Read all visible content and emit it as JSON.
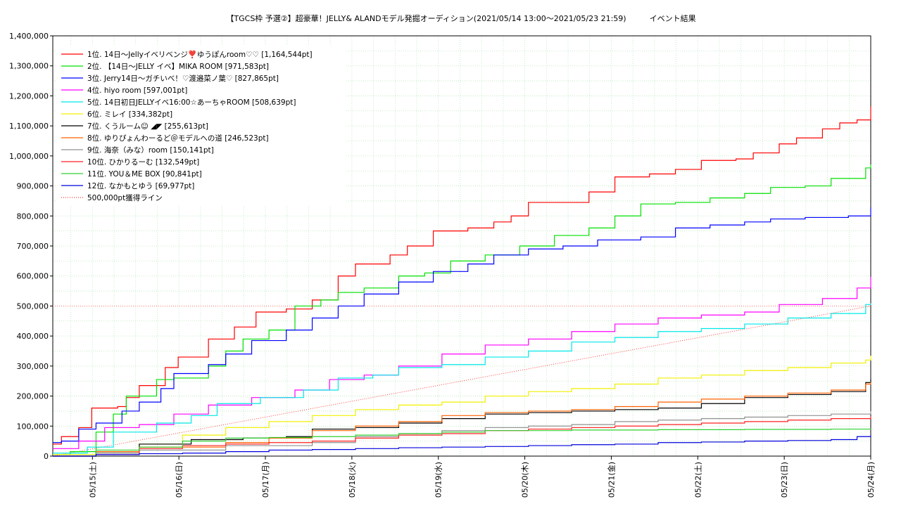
{
  "chart_data": {
    "type": "line",
    "title": "【TGCS枠 予選②】超豪華！JELLY& ALANDモデル発掘オーディション(2021/05/14 13:00〜2021/05/23 21:59)　　　イベント結果",
    "xlabel": "",
    "ylabel": "",
    "ylim": [
      0,
      1400000
    ],
    "xlim_days": [
      "05/14 13:00",
      "05/24 00:00"
    ],
    "grid": true,
    "legend_position": "top-left",
    "y_ticks": [
      "0",
      "100,000",
      "200,000",
      "300,000",
      "400,000",
      "500,000",
      "600,000",
      "700,000",
      "800,000",
      "900,000",
      "1,000,000",
      "1,100,000",
      "1,200,000",
      "1,300,000",
      "1,400,000"
    ],
    "x_ticks": [
      "05/15(土)",
      "05/16(日)",
      "05/17(月)",
      "05/18(火)",
      "05/19(水)",
      "05/20(木)",
      "05/21(金)",
      "05/22(土)",
      "05/23(日)",
      "05/24(月)"
    ],
    "series": [
      {
        "name": "1位. 14日〜Jellyイベリベンジ❣️ゆうぽんroom♡♡ [1,164,544pt]",
        "color": "#ff0000",
        "final": 1164544,
        "points": [
          [
            0,
            40000
          ],
          [
            0.1,
            65000
          ],
          [
            0.3,
            95000
          ],
          [
            0.45,
            160000
          ],
          [
            0.75,
            165000
          ],
          [
            0.85,
            195000
          ],
          [
            1.0,
            235000
          ],
          [
            1.3,
            295000
          ],
          [
            1.45,
            330000
          ],
          [
            1.8,
            390000
          ],
          [
            2.1,
            430000
          ],
          [
            2.35,
            480000
          ],
          [
            2.7,
            490000
          ],
          [
            3.0,
            520000
          ],
          [
            3.3,
            600000
          ],
          [
            3.5,
            640000
          ],
          [
            3.9,
            670000
          ],
          [
            4.1,
            700000
          ],
          [
            4.4,
            750000
          ],
          [
            4.8,
            760000
          ],
          [
            5.1,
            780000
          ],
          [
            5.3,
            800000
          ],
          [
            5.5,
            845000
          ],
          [
            6.2,
            880000
          ],
          [
            6.5,
            930000
          ],
          [
            6.9,
            940000
          ],
          [
            7.2,
            955000
          ],
          [
            7.5,
            985000
          ],
          [
            7.9,
            990000
          ],
          [
            8.1,
            1010000
          ],
          [
            8.4,
            1040000
          ],
          [
            8.6,
            1060000
          ],
          [
            8.9,
            1090000
          ],
          [
            9.1,
            1110000
          ],
          [
            9.3,
            1120000
          ],
          [
            9.5,
            1150000
          ],
          [
            9.6,
            1164544
          ]
        ]
      },
      {
        "name": "2位. 【14日〜JELLY イベ】MIKA ROOM [971,583pt]",
        "color": "#00e000",
        "final": 971583,
        "points": [
          [
            0,
            5000
          ],
          [
            0.2,
            15000
          ],
          [
            0.5,
            80000
          ],
          [
            0.7,
            140000
          ],
          [
            0.85,
            200000
          ],
          [
            1.2,
            255000
          ],
          [
            1.4,
            260000
          ],
          [
            1.8,
            300000
          ],
          [
            2.0,
            350000
          ],
          [
            2.2,
            390000
          ],
          [
            2.5,
            420000
          ],
          [
            2.8,
            500000
          ],
          [
            3.1,
            520000
          ],
          [
            3.3,
            545000
          ],
          [
            3.6,
            560000
          ],
          [
            4.0,
            600000
          ],
          [
            4.3,
            610000
          ],
          [
            4.6,
            650000
          ],
          [
            5.0,
            670000
          ],
          [
            5.4,
            700000
          ],
          [
            5.8,
            735000
          ],
          [
            6.2,
            760000
          ],
          [
            6.5,
            800000
          ],
          [
            6.8,
            840000
          ],
          [
            7.2,
            845000
          ],
          [
            7.6,
            860000
          ],
          [
            8.0,
            875000
          ],
          [
            8.3,
            895000
          ],
          [
            8.7,
            900000
          ],
          [
            9.0,
            925000
          ],
          [
            9.4,
            960000
          ],
          [
            9.6,
            971583
          ]
        ]
      },
      {
        "name": "3位. Jerry14日〜ガチいべ！♡渡邉菜ノ葉♡ [827,865pt]",
        "color": "#0000ff",
        "final": 827865,
        "points": [
          [
            0,
            45000
          ],
          [
            0.1,
            50000
          ],
          [
            0.3,
            90000
          ],
          [
            0.5,
            110000
          ],
          [
            0.8,
            150000
          ],
          [
            1.0,
            180000
          ],
          [
            1.25,
            225000
          ],
          [
            1.4,
            275000
          ],
          [
            1.8,
            305000
          ],
          [
            2.0,
            340000
          ],
          [
            2.3,
            385000
          ],
          [
            2.7,
            420000
          ],
          [
            3.0,
            460000
          ],
          [
            3.3,
            500000
          ],
          [
            3.6,
            540000
          ],
          [
            4.0,
            580000
          ],
          [
            4.4,
            615000
          ],
          [
            4.8,
            640000
          ],
          [
            5.1,
            670000
          ],
          [
            5.5,
            690000
          ],
          [
            5.9,
            700000
          ],
          [
            6.3,
            720000
          ],
          [
            6.8,
            730000
          ],
          [
            7.2,
            760000
          ],
          [
            7.6,
            770000
          ],
          [
            8.0,
            780000
          ],
          [
            8.3,
            790000
          ],
          [
            8.7,
            795000
          ],
          [
            9.2,
            800000
          ],
          [
            9.5,
            827865
          ],
          [
            9.6,
            827865
          ]
        ]
      },
      {
        "name": "4位. hiyo room [597,001pt]",
        "color": "#ff00ff",
        "final": 597001,
        "points": [
          [
            0,
            25000
          ],
          [
            0.3,
            50000
          ],
          [
            0.6,
            95000
          ],
          [
            1.0,
            105000
          ],
          [
            1.4,
            140000
          ],
          [
            1.8,
            170000
          ],
          [
            2.3,
            195000
          ],
          [
            2.8,
            220000
          ],
          [
            3.2,
            255000
          ],
          [
            3.6,
            270000
          ],
          [
            4.0,
            300000
          ],
          [
            4.5,
            340000
          ],
          [
            5.0,
            370000
          ],
          [
            5.5,
            390000
          ],
          [
            6.0,
            415000
          ],
          [
            6.5,
            440000
          ],
          [
            7.0,
            460000
          ],
          [
            7.5,
            470000
          ],
          [
            8.0,
            480000
          ],
          [
            8.4,
            505000
          ],
          [
            8.9,
            525000
          ],
          [
            9.3,
            560000
          ],
          [
            9.6,
            597001
          ]
        ]
      },
      {
        "name": "5位. 14日初日JELLYイベ16:00☆あーちゃROOM [508,639pt]",
        "color": "#00e8e8",
        "final": 508639,
        "points": [
          [
            0,
            10000
          ],
          [
            0.4,
            30000
          ],
          [
            0.7,
            80000
          ],
          [
            1.2,
            110000
          ],
          [
            1.6,
            135000
          ],
          [
            1.9,
            175000
          ],
          [
            2.4,
            195000
          ],
          [
            2.9,
            220000
          ],
          [
            3.3,
            260000
          ],
          [
            3.7,
            270000
          ],
          [
            4.0,
            295000
          ],
          [
            4.5,
            305000
          ],
          [
            5.0,
            330000
          ],
          [
            5.5,
            350000
          ],
          [
            6.0,
            380000
          ],
          [
            6.5,
            395000
          ],
          [
            7.0,
            415000
          ],
          [
            7.5,
            425000
          ],
          [
            8.0,
            440000
          ],
          [
            8.5,
            460000
          ],
          [
            9.0,
            475000
          ],
          [
            9.4,
            505000
          ],
          [
            9.6,
            508639
          ]
        ]
      },
      {
        "name": "6位. ミレイ [334,382pt]",
        "color": "#f0f000",
        "final": 334382,
        "points": [
          [
            0,
            5000
          ],
          [
            0.5,
            15000
          ],
          [
            1.0,
            40000
          ],
          [
            1.5,
            70000
          ],
          [
            2.0,
            95000
          ],
          [
            2.5,
            115000
          ],
          [
            3.0,
            135000
          ],
          [
            3.5,
            155000
          ],
          [
            4.0,
            170000
          ],
          [
            4.5,
            180000
          ],
          [
            5.0,
            200000
          ],
          [
            5.5,
            215000
          ],
          [
            6.0,
            225000
          ],
          [
            6.5,
            240000
          ],
          [
            7.0,
            260000
          ],
          [
            7.5,
            270000
          ],
          [
            8.0,
            285000
          ],
          [
            8.5,
            295000
          ],
          [
            9.0,
            310000
          ],
          [
            9.4,
            320000
          ],
          [
            9.6,
            334382
          ]
        ]
      },
      {
        "name": "7位. くうルーム☺︎ ◢◤ [255,613pt]",
        "color": "#000000",
        "final": 255613,
        "points": [
          [
            0,
            0
          ],
          [
            0.5,
            15000
          ],
          [
            1.0,
            40000
          ],
          [
            1.6,
            55000
          ],
          [
            2.2,
            60000
          ],
          [
            2.7,
            65000
          ],
          [
            3.0,
            90000
          ],
          [
            3.5,
            95000
          ],
          [
            4.0,
            110000
          ],
          [
            4.5,
            125000
          ],
          [
            5.0,
            140000
          ],
          [
            5.5,
            145000
          ],
          [
            6.0,
            150000
          ],
          [
            6.5,
            155000
          ],
          [
            7.0,
            160000
          ],
          [
            7.5,
            175000
          ],
          [
            8.0,
            195000
          ],
          [
            8.5,
            205000
          ],
          [
            9.0,
            215000
          ],
          [
            9.4,
            245000
          ],
          [
            9.6,
            255613
          ]
        ]
      },
      {
        "name": "8位. ゆりぴょんわーるど＠モデルへの道 [246,523pt]",
        "color": "#ff6000",
        "final": 246523,
        "points": [
          [
            0,
            0
          ],
          [
            0.5,
            15000
          ],
          [
            1.0,
            30000
          ],
          [
            2.0,
            45000
          ],
          [
            2.5,
            60000
          ],
          [
            3.0,
            85000
          ],
          [
            3.5,
            100000
          ],
          [
            4.0,
            115000
          ],
          [
            4.5,
            135000
          ],
          [
            5.0,
            145000
          ],
          [
            5.5,
            150000
          ],
          [
            6.0,
            155000
          ],
          [
            6.5,
            165000
          ],
          [
            7.0,
            180000
          ],
          [
            7.5,
            190000
          ],
          [
            8.0,
            200000
          ],
          [
            8.5,
            210000
          ],
          [
            9.0,
            220000
          ],
          [
            9.4,
            240000
          ],
          [
            9.6,
            246523
          ]
        ]
      },
      {
        "name": "9位. 海奈（みな）room [150,141pt]",
        "color": "#909090",
        "final": 150141,
        "points": [
          [
            0,
            0
          ],
          [
            0.5,
            10000
          ],
          [
            1.0,
            20000
          ],
          [
            2.0,
            35000
          ],
          [
            3.0,
            45000
          ],
          [
            3.5,
            65000
          ],
          [
            4.0,
            75000
          ],
          [
            4.5,
            85000
          ],
          [
            5.0,
            95000
          ],
          [
            5.5,
            100000
          ],
          [
            6.0,
            105000
          ],
          [
            6.5,
            115000
          ],
          [
            7.0,
            120000
          ],
          [
            7.5,
            125000
          ],
          [
            8.0,
            130000
          ],
          [
            8.5,
            135000
          ],
          [
            9.0,
            140000
          ],
          [
            9.5,
            145000
          ],
          [
            9.6,
            150141
          ]
        ]
      },
      {
        "name": "10位. ひかりるーむ [132,549pt]",
        "color": "#ff2020",
        "final": 132549,
        "points": [
          [
            0,
            0
          ],
          [
            0.5,
            5000
          ],
          [
            1.0,
            25000
          ],
          [
            1.5,
            35000
          ],
          [
            2.0,
            40000
          ],
          [
            2.5,
            45000
          ],
          [
            3.0,
            50000
          ],
          [
            3.5,
            60000
          ],
          [
            4.0,
            70000
          ],
          [
            4.5,
            75000
          ],
          [
            5.0,
            85000
          ],
          [
            5.5,
            90000
          ],
          [
            6.0,
            95000
          ],
          [
            6.5,
            100000
          ],
          [
            7.0,
            105000
          ],
          [
            7.5,
            110000
          ],
          [
            8.0,
            115000
          ],
          [
            8.5,
            120000
          ],
          [
            9.0,
            125000
          ],
          [
            9.6,
            132549
          ]
        ]
      },
      {
        "name": "11位. YOU＆ME BOX [90,841pt]",
        "color": "#30d030",
        "final": 90841,
        "points": [
          [
            0,
            0
          ],
          [
            0.5,
            20000
          ],
          [
            1.0,
            30000
          ],
          [
            1.5,
            50000
          ],
          [
            2.0,
            60000
          ],
          [
            2.5,
            62000
          ],
          [
            3.0,
            65000
          ],
          [
            3.5,
            70000
          ],
          [
            4.0,
            75000
          ],
          [
            4.5,
            80000
          ],
          [
            5.0,
            85000
          ],
          [
            6.0,
            87000
          ],
          [
            7.0,
            88000
          ],
          [
            8.0,
            89000
          ],
          [
            9.0,
            90000
          ],
          [
            9.6,
            90841
          ]
        ]
      },
      {
        "name": "12位. なかもとゆう [69,977pt]",
        "color": "#0000dd",
        "final": 69977,
        "points": [
          [
            0,
            0
          ],
          [
            0.5,
            5000
          ],
          [
            1.0,
            8000
          ],
          [
            1.5,
            10000
          ],
          [
            2.0,
            15000
          ],
          [
            2.5,
            20000
          ],
          [
            3.0,
            22000
          ],
          [
            3.5,
            25000
          ],
          [
            4.0,
            28000
          ],
          [
            4.5,
            30000
          ],
          [
            5.0,
            32000
          ],
          [
            5.5,
            35000
          ],
          [
            6.0,
            38000
          ],
          [
            6.5,
            40000
          ],
          [
            7.0,
            45000
          ],
          [
            7.5,
            47000
          ],
          [
            8.0,
            50000
          ],
          [
            8.5,
            52000
          ],
          [
            9.0,
            55000
          ],
          [
            9.3,
            65000
          ],
          [
            9.6,
            69977
          ]
        ]
      }
    ],
    "reference_line": {
      "name": "500,000pt獲得ライン",
      "color": "#ff0000",
      "value": 500000
    }
  }
}
